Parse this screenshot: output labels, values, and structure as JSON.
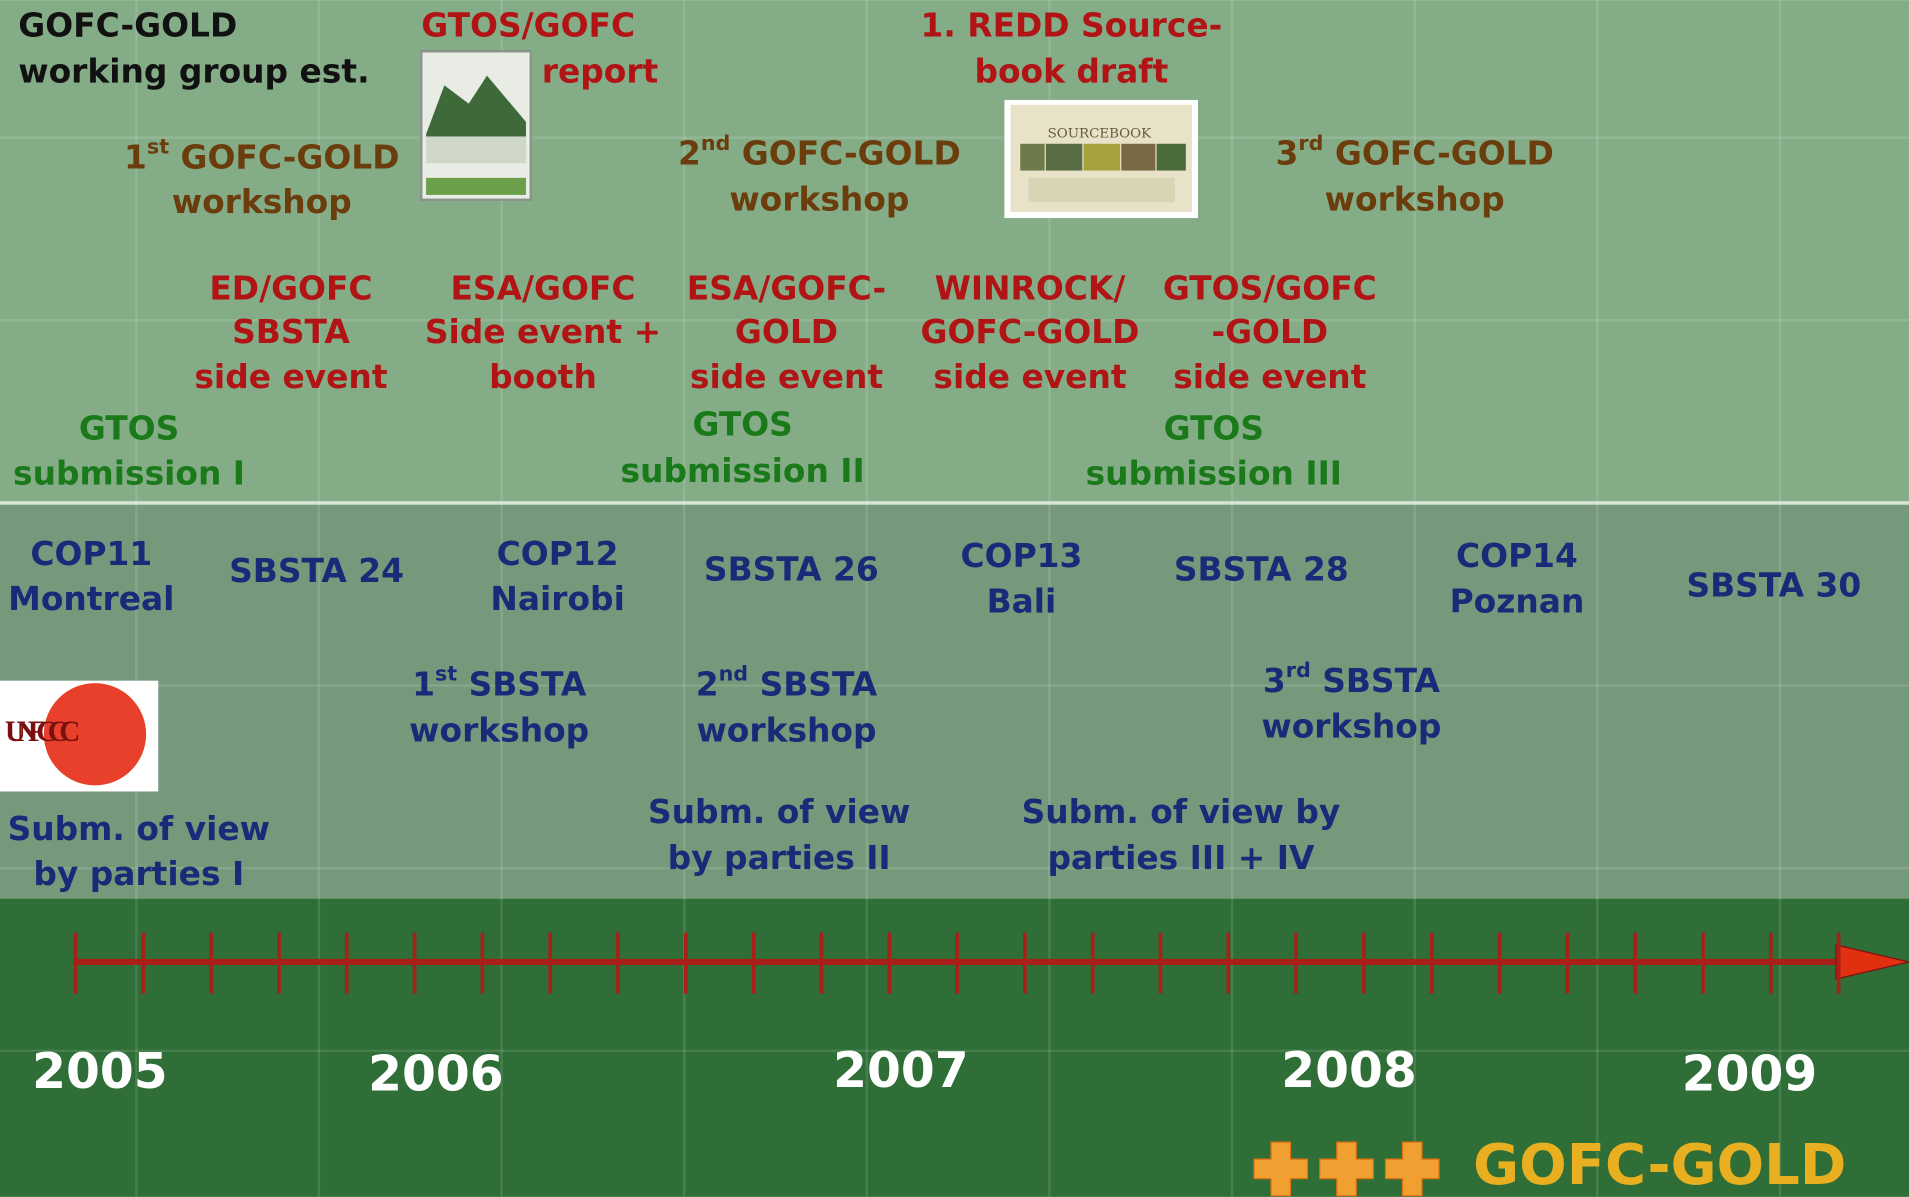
{
  "labels": [
    {
      "lines": [
        "GOFC-GOLD",
        "working group est."
      ]
    },
    {
      "lines": [
        "GTOS/GOFC",
        "report"
      ]
    },
    {
      "lines": [
        "1. REDD Source-",
        "book draft"
      ]
    },
    {
      "lines": [
        {
          "pre": "1",
          "sup": "st",
          "post": " GOFC-GOLD"
        },
        "workshop"
      ]
    },
    {
      "lines": [
        {
          "pre": "2",
          "sup": "nd",
          "post": " GOFC-GOLD"
        },
        "workshop"
      ]
    },
    {
      "lines": [
        {
          "pre": "3",
          "sup": "rd",
          "post": " GOFC-GOLD"
        },
        "workshop"
      ]
    },
    {
      "lines": [
        "ED/GOFC",
        "SBSTA",
        "side event"
      ]
    },
    {
      "lines": [
        "ESA/GOFC",
        "Side event +",
        "booth"
      ]
    },
    {
      "lines": [
        "ESA/GOFC-",
        "GOLD",
        "side event"
      ]
    },
    {
      "lines": [
        "WINROCK/",
        "GOFC-GOLD",
        "side event"
      ]
    },
    {
      "lines": [
        "GTOS/GOFC",
        "-GOLD",
        "side event"
      ]
    },
    {
      "lines": [
        "GTOS",
        "submission I"
      ]
    },
    {
      "lines": [
        "GTOS",
        "submission II"
      ]
    },
    {
      "lines": [
        "GTOS",
        "submission III"
      ]
    },
    {
      "lines": [
        "COP11",
        "Montreal"
      ]
    },
    {
      "lines": [
        "SBSTA 24"
      ]
    },
    {
      "lines": [
        "COP12",
        "Nairobi"
      ]
    },
    {
      "lines": [
        "SBSTA 26"
      ]
    },
    {
      "lines": [
        "COP13",
        "Bali"
      ]
    },
    {
      "lines": [
        "SBSTA 28"
      ]
    },
    {
      "lines": [
        "COP14",
        "Poznan"
      ]
    },
    {
      "lines": [
        "SBSTA 30"
      ]
    },
    {
      "lines": [
        {
          "pre": "1",
          "sup": "st",
          "post": " SBSTA"
        },
        "workshop"
      ]
    },
    {
      "lines": [
        {
          "pre": "2",
          "sup": "nd",
          "post": " SBSTA"
        },
        "workshop"
      ]
    },
    {
      "lines": [
        {
          "pre": "3",
          "sup": "rd",
          "post": " SBSTA"
        },
        "workshop"
      ]
    },
    {
      "lines": [
        "Subm. of view",
        "by parties I"
      ]
    },
    {
      "lines": [
        "Subm. of view",
        "by parties II"
      ]
    },
    {
      "lines": [
        "Subm. of view by",
        "parties III + IV"
      ]
    }
  ],
  "years": [
    "2005",
    "2006",
    "2007",
    "2008",
    "2009"
  ],
  "sourcebook_title": "SOURCEBOOK",
  "unfccc_logo": "UNFCCC",
  "logo_text": "GOFC-GOLD"
}
